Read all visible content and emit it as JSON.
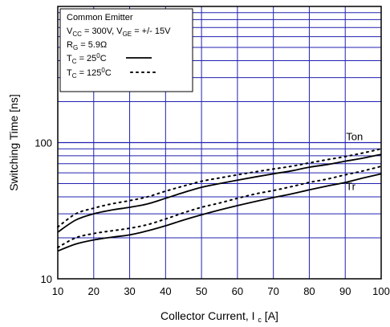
{
  "chart_data": {
    "type": "line",
    "xlabel": "Collector Current, I",
    "xlabel_sub": "c",
    "xlabel_unit": "[A]",
    "ylabel": "Switching Time [ns]",
    "xlim": [
      10,
      100
    ],
    "ylim": [
      10,
      1000
    ],
    "yscale": "log",
    "grid": true,
    "grid_color": "#2020b0",
    "x_ticks": [
      10,
      20,
      30,
      40,
      50,
      60,
      70,
      80,
      90,
      100
    ],
    "y_ticks": [
      {
        "value": 10,
        "label": "10"
      },
      {
        "value": 100,
        "label": "100"
      }
    ],
    "legend": {
      "placement": "top-left",
      "conditions": [
        {
          "text": "Common Emitter"
        },
        {
          "parts": [
            "V",
            "CC",
            " = 300V, V",
            "GE",
            " = +/- 15V"
          ]
        },
        {
          "parts": [
            "R",
            "G",
            " = 5.9Ω"
          ]
        }
      ],
      "entries": [
        {
          "parts": [
            "T",
            "C",
            " = 25",
            "0",
            "C"
          ],
          "style": "solid"
        },
        {
          "parts": [
            "T",
            "C",
            " = 125",
            "0",
            "C"
          ],
          "style": "dotted"
        }
      ]
    },
    "series": [
      {
        "name": "Ton",
        "temp": "25C",
        "style": "solid",
        "x": [
          10,
          15,
          20,
          25,
          30,
          35,
          40,
          45,
          50,
          55,
          60,
          65,
          70,
          75,
          80,
          85,
          90,
          95,
          100
        ],
        "y": [
          22,
          27,
          30,
          32,
          33.5,
          35.5,
          39,
          43,
          47,
          50,
          53,
          56,
          59,
          62,
          66,
          69,
          73,
          77,
          82
        ]
      },
      {
        "name": "Ton",
        "temp": "125C",
        "style": "dotted",
        "x": [
          10,
          15,
          20,
          25,
          30,
          35,
          40,
          45,
          50,
          55,
          60,
          65,
          70,
          75,
          80,
          85,
          90,
          95,
          100
        ],
        "y": [
          24,
          30,
          33,
          35.5,
          37.5,
          40,
          44,
          48,
          52,
          55,
          58,
          61,
          64,
          67,
          71,
          75,
          79,
          84,
          90
        ]
      },
      {
        "name": "Tr",
        "temp": "25C",
        "style": "solid",
        "x": [
          10,
          15,
          20,
          25,
          30,
          35,
          40,
          45,
          50,
          55,
          60,
          65,
          70,
          75,
          80,
          85,
          90,
          95,
          100
        ],
        "y": [
          16,
          18,
          19.3,
          20.2,
          21,
          22.5,
          24.5,
          27,
          29.5,
          32,
          34.5,
          37,
          39.5,
          42,
          45,
          48,
          51,
          55,
          59
        ]
      },
      {
        "name": "Tr",
        "temp": "125C",
        "style": "dotted",
        "x": [
          10,
          15,
          20,
          25,
          30,
          35,
          40,
          45,
          50,
          55,
          60,
          65,
          70,
          75,
          80,
          85,
          90,
          95,
          100
        ],
        "y": [
          17,
          20,
          21.5,
          22.5,
          23.5,
          25,
          27.5,
          30.5,
          33.5,
          36,
          39,
          42,
          44.5,
          47.5,
          51,
          54,
          58,
          62,
          67
        ]
      }
    ],
    "annotations": [
      {
        "text": "Ton",
        "x": 90,
        "y": 100
      },
      {
        "text": "Tr",
        "x": 90,
        "y": 43
      }
    ]
  }
}
